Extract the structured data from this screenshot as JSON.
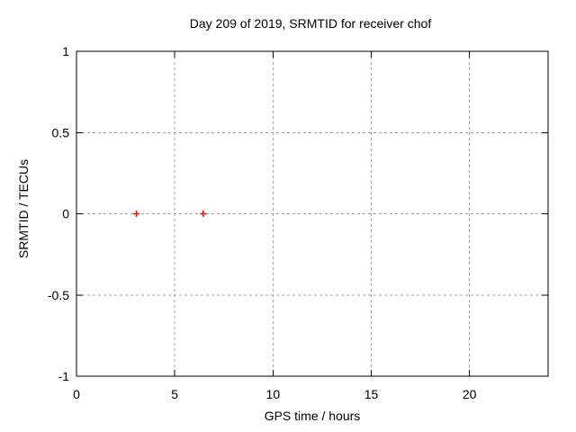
{
  "page": {
    "background": "#ffffff"
  },
  "chart_data": {
    "type": "scatter",
    "title": "Day 209 of 2019, SRMTID for receiver chof",
    "xlabel": "GPS time / hours",
    "ylabel": "SRMTID / TECUs",
    "xlim": [
      0,
      24
    ],
    "ylim": [
      -1,
      1
    ],
    "grid": true,
    "legend_position": "none",
    "xticks": [
      {
        "value": 0,
        "label": "0"
      },
      {
        "value": 5,
        "label": "5"
      },
      {
        "value": 10,
        "label": "10"
      },
      {
        "value": 15,
        "label": "15"
      },
      {
        "value": 20,
        "label": "20"
      }
    ],
    "yticks": [
      {
        "value": -1,
        "label": "-1"
      },
      {
        "value": -0.5,
        "label": "-0.5"
      },
      {
        "value": 0,
        "label": "0"
      },
      {
        "value": 0.5,
        "label": "0.5"
      },
      {
        "value": 1,
        "label": "1"
      }
    ],
    "series": [
      {
        "name": "SRMTID",
        "marker": "plus",
        "color": "#ff0000",
        "points": [
          {
            "x": 3.05,
            "y": 0.0
          },
          {
            "x": 6.45,
            "y": 0.0
          }
        ]
      }
    ],
    "colors": {
      "grid": "#a0a0a0",
      "border": "#000000",
      "tick": "#000000",
      "text": "#000000",
      "background": "#ffffff"
    }
  }
}
